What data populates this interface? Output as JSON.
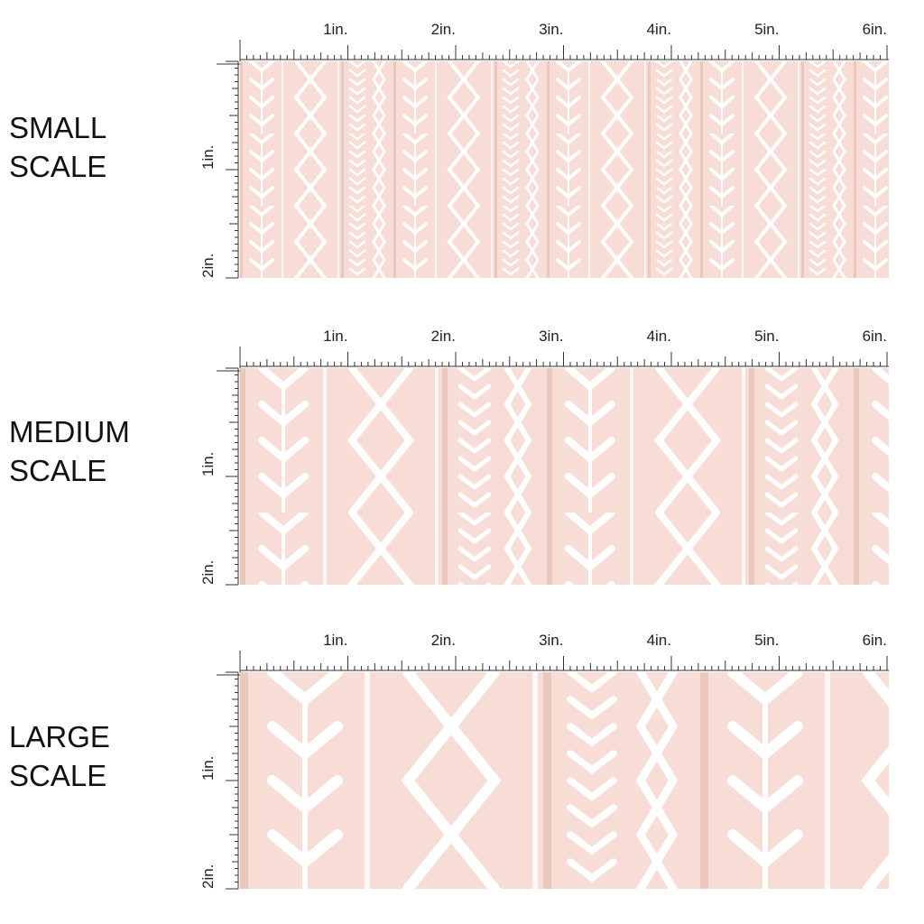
{
  "panels": [
    {
      "label": [
        "SMALL",
        "SCALE"
      ],
      "top_ruler": [
        "1in.",
        "2in.",
        "3in.",
        "4in.",
        "5in.",
        "6in."
      ],
      "side_ruler": [
        "1in.",
        "2in."
      ]
    },
    {
      "label": [
        "MEDIUM",
        "SCALE"
      ],
      "top_ruler": [
        "1in.",
        "2in.",
        "3in.",
        "4in.",
        "5in.",
        "6in."
      ],
      "side_ruler": [
        "1in.",
        "2in."
      ]
    },
    {
      "label": [
        "LARGE",
        "SCALE"
      ],
      "top_ruler": [
        "1in.",
        "2in.",
        "3in.",
        "4in.",
        "5in.",
        "6in."
      ],
      "side_ruler": [
        "1in.",
        "2in."
      ]
    }
  ]
}
